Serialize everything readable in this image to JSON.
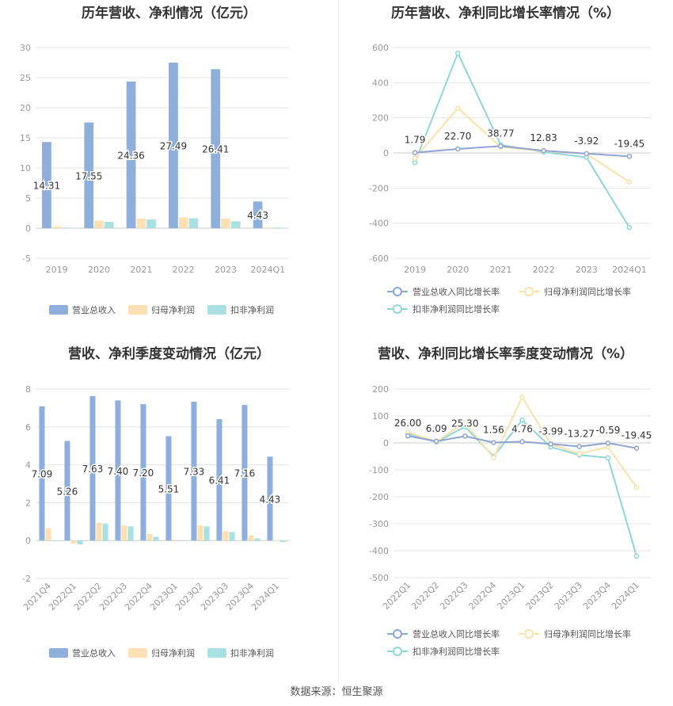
{
  "colors": {
    "revenue": "#8eaedc",
    "net_profit": "#fde0b3",
    "deducted_profit": "#a9e0e2",
    "revenue_line": "#8ea4d2",
    "net_line": "#fde1a8",
    "deducted_line": "#8fd6dc",
    "grid": "#e6e6e6",
    "axis": "#cccccc"
  },
  "source": "数据来源：恒生聚源",
  "chart_data": [
    {
      "id": "annual-bar",
      "type": "bar",
      "title": "历年营收、净利情况（亿元）",
      "categories": [
        "2019",
        "2020",
        "2021",
        "2022",
        "2023",
        "2024Q1"
      ],
      "ylim": [
        -5,
        30
      ],
      "yticks": [
        30,
        25,
        20,
        15,
        10,
        5,
        0,
        -5
      ],
      "grid": true,
      "legend": "bottom",
      "series": [
        {
          "name": "营业总收入",
          "values": [
            14.31,
            17.55,
            24.36,
            27.49,
            26.41,
            4.43
          ],
          "labels": [
            "14.31",
            "17.55",
            "24.36",
            "27.49",
            "26.41",
            "4.43"
          ]
        },
        {
          "name": "归母净利润",
          "values": [
            0.3,
            1.25,
            1.6,
            1.8,
            1.6,
            0.1
          ]
        },
        {
          "name": "扣非净利润",
          "values": [
            0.1,
            1.05,
            1.45,
            1.65,
            1.15,
            0.1
          ]
        }
      ]
    },
    {
      "id": "annual-line",
      "type": "line",
      "title": "历年营收、净利同比增长率情况（%）",
      "categories": [
        "2019",
        "2020",
        "2021",
        "2022",
        "2023",
        "2024Q1"
      ],
      "ylim": [
        -600,
        600
      ],
      "yticks": [
        600,
        400,
        200,
        0,
        -200,
        -400,
        -600
      ],
      "grid": true,
      "legend": "bottom",
      "series": [
        {
          "name": "营业总收入同比增长率",
          "values": [
            1.79,
            22.7,
            38.77,
            12.83,
            -3.92,
            -19.45
          ],
          "labels": [
            "1.79",
            "22.70",
            "38.77",
            "12.83",
            "-3.92",
            "-19.45"
          ]
        },
        {
          "name": "归母净利润同比增长率",
          "values": [
            -30,
            255,
            35,
            10,
            -5,
            -165
          ]
        },
        {
          "name": "扣非净利润同比增长率",
          "values": [
            -55,
            568,
            45,
            5,
            -25,
            -425
          ]
        }
      ]
    },
    {
      "id": "quarter-bar",
      "type": "bar",
      "title": "营收、净利季度变动情况（亿元）",
      "categories": [
        "2021Q4",
        "2022Q1",
        "2022Q2",
        "2022Q3",
        "2022Q4",
        "2023Q1",
        "2023Q2",
        "2023Q3",
        "2023Q4",
        "2024Q1"
      ],
      "ylim": [
        -2,
        8
      ],
      "yticks": [
        8,
        6,
        4,
        2,
        0,
        -2
      ],
      "grid": true,
      "legend": "bottom",
      "series": [
        {
          "name": "营业总收入",
          "values": [
            7.09,
            5.26,
            7.63,
            7.4,
            7.2,
            5.51,
            7.33,
            6.41,
            7.16,
            4.43
          ],
          "labels": [
            "7.09",
            "5.26",
            "7.63",
            "7.40",
            "7.20",
            "5.51",
            "7.33",
            "6.41",
            "7.16",
            "4.43"
          ]
        },
        {
          "name": "归母净利润",
          "values": [
            0.65,
            -0.15,
            0.95,
            0.8,
            0.35,
            0.05,
            0.8,
            0.5,
            0.28,
            0.02
          ]
        },
        {
          "name": "扣非净利润",
          "values": [
            0.0,
            -0.2,
            0.9,
            0.75,
            0.2,
            0.0,
            0.75,
            0.45,
            0.12,
            -0.08
          ]
        }
      ]
    },
    {
      "id": "quarter-line",
      "type": "line",
      "title": "营收、净利同比增长率季度变动情况（%）",
      "categories": [
        "2022Q1",
        "2022Q2",
        "2022Q3",
        "2022Q4",
        "2023Q1",
        "2023Q2",
        "2023Q3",
        "2023Q4",
        "2024Q1"
      ],
      "ylim": [
        -500,
        200
      ],
      "yticks": [
        200,
        100,
        0,
        -100,
        -200,
        -300,
        -400,
        -500
      ],
      "grid": true,
      "legend": "bottom",
      "series": [
        {
          "name": "营业总收入同比增长率",
          "values": [
            26.0,
            6.09,
            25.3,
            1.56,
            4.76,
            -3.99,
            -13.27,
            -0.59,
            -19.45
          ],
          "labels": [
            "26.00",
            "6.09",
            "25.30",
            "1.56",
            "4.76",
            "-3.99",
            "-13.27",
            "-0.59",
            "-19.45"
          ]
        },
        {
          "name": "归母净利润同比增长率",
          "values": [
            40,
            5,
            75,
            -55,
            170,
            -5,
            -40,
            -15,
            -165
          ]
        },
        {
          "name": "扣非净利润同比增长率",
          "values": [
            35,
            3,
            60,
            -50,
            85,
            -15,
            -45,
            -55,
            -420
          ]
        }
      ]
    }
  ]
}
